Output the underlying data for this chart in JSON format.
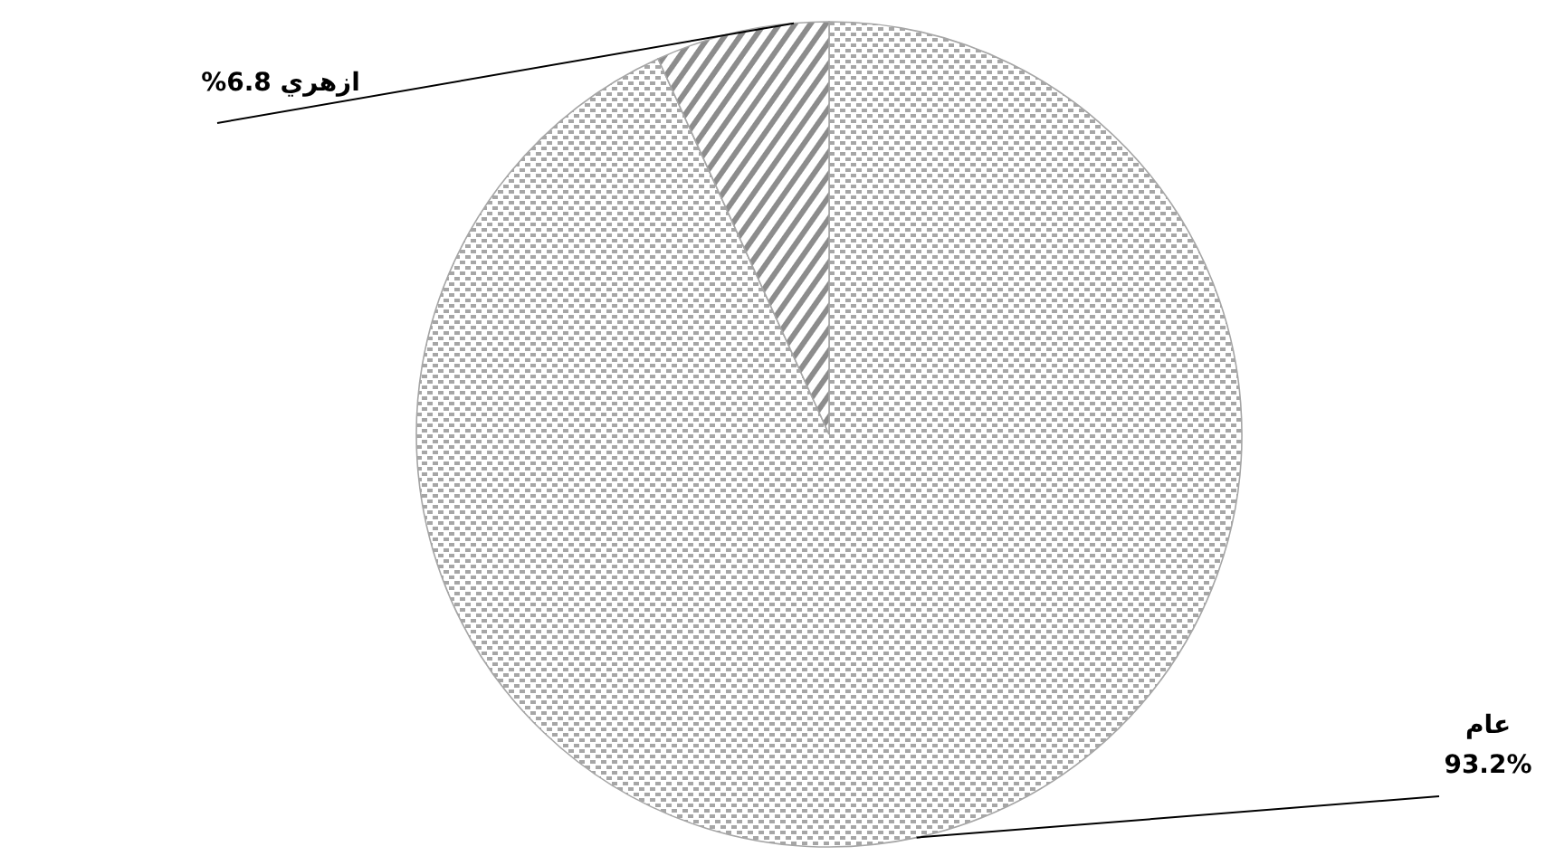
{
  "chart_data": {
    "type": "pie",
    "categories": [
      "عام",
      "ازهري"
    ],
    "values": [
      93.2,
      6.8
    ],
    "value_labels": [
      "93.2%",
      "6.8%"
    ],
    "colors": [
      "#a6a6a6",
      "#8c8c8c"
    ]
  }
}
